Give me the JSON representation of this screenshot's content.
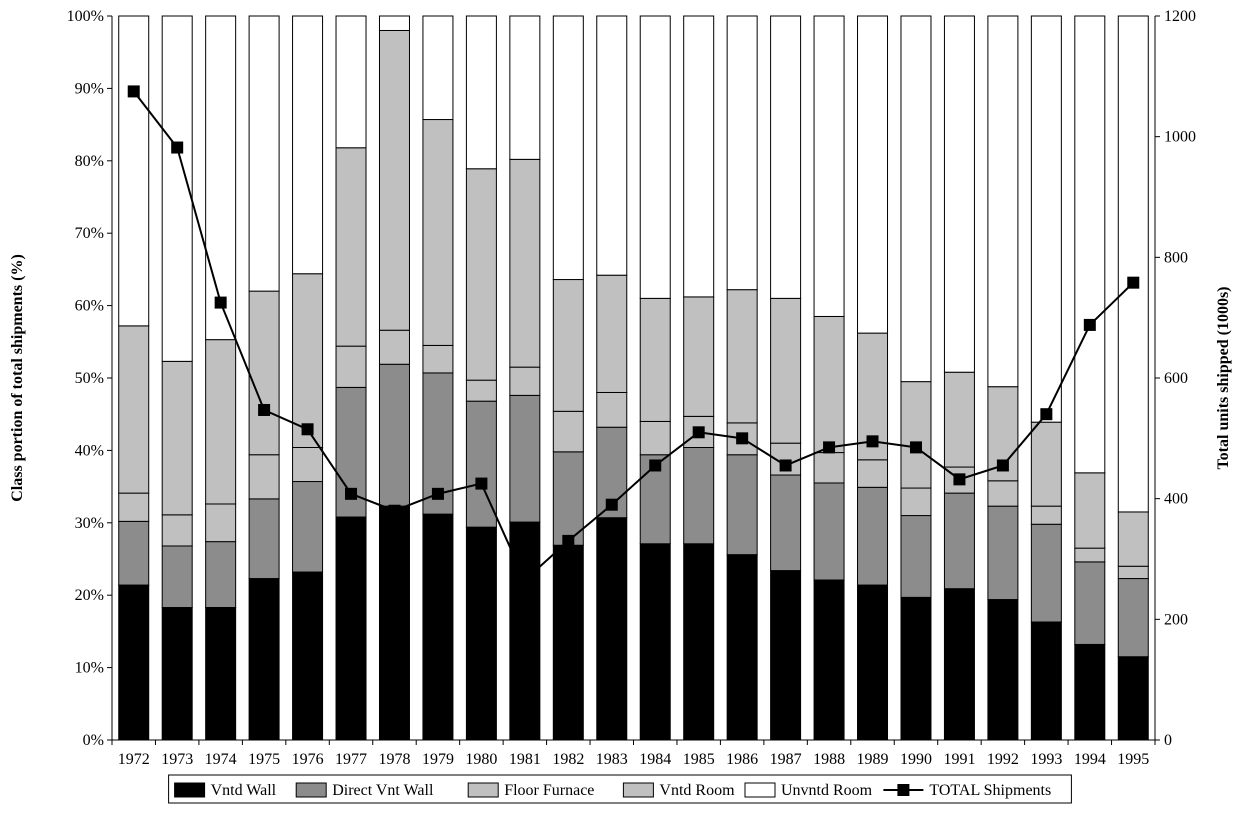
{
  "chart_data": {
    "type": "bar",
    "stacked": true,
    "categories": [
      "1972",
      "1973",
      "1974",
      "1975",
      "1976",
      "1977",
      "1978",
      "1979",
      "1980",
      "1981",
      "1982",
      "1983",
      "1984",
      "1985",
      "1986",
      "1987",
      "1988",
      "1989",
      "1990",
      "1991",
      "1992",
      "1993",
      "1994",
      "1995"
    ],
    "ylabel_left": "Class portion of total shipments (%)",
    "ylabel_right": "Total units shipped (1000s)",
    "y_left_ticks": [
      "0%",
      "10%",
      "20%",
      "30%",
      "40%",
      "50%",
      "60%",
      "70%",
      "80%",
      "90%",
      "100%"
    ],
    "y_right_ticks": [
      "0",
      "200",
      "400",
      "600",
      "800",
      "1000",
      "1200"
    ],
    "ylim_left": [
      0,
      100
    ],
    "ylim_right": [
      0,
      1200
    ],
    "grid": false,
    "legend_position": "bottom",
    "series": [
      {
        "name": "Vntd Wall",
        "color": "#000000",
        "values": [
          21.4,
          18.3,
          18.3,
          22.3,
          23.2,
          30.8,
          32.3,
          31.2,
          29.4,
          30.1,
          26.9,
          30.7,
          27.1,
          27.1,
          25.6,
          23.4,
          22.1,
          21.4,
          19.7,
          20.9,
          19.4,
          16.3,
          13.2,
          11.5
        ]
      },
      {
        "name": "Direct Vnt Wall",
        "color": "#8c8c8c",
        "values": [
          8.8,
          8.5,
          9.1,
          11.0,
          12.5,
          17.9,
          19.6,
          19.5,
          17.4,
          17.5,
          12.9,
          12.5,
          12.3,
          13.3,
          13.8,
          13.2,
          13.4,
          13.5,
          11.3,
          13.2,
          12.9,
          13.5,
          11.4,
          10.8
        ]
      },
      {
        "name": "Floor Furnace",
        "color": "#c0c0c0",
        "values": [
          3.9,
          4.3,
          5.2,
          6.1,
          4.7,
          5.7,
          4.7,
          3.8,
          2.9,
          3.9,
          5.6,
          4.8,
          4.6,
          4.3,
          4.4,
          4.4,
          4.2,
          3.8,
          3.8,
          3.6,
          3.5,
          2.5,
          1.9,
          1.7
        ]
      },
      {
        "name": "Vntd Room",
        "color": "#c0c0c0",
        "values": [
          23.1,
          21.2,
          22.7,
          22.6,
          24.0,
          27.4,
          41.4,
          31.2,
          29.2,
          28.7,
          18.2,
          16.2,
          17.0,
          16.5,
          18.4,
          20.0,
          18.8,
          17.5,
          14.7,
          13.1,
          13.0,
          11.6,
          10.4,
          7.5
        ]
      },
      {
        "name": "Unvntd Room",
        "color": "#ffffff",
        "values": [
          42.8,
          47.7,
          44.7,
          38.0,
          35.6,
          18.2,
          2.0,
          14.3,
          21.1,
          19.8,
          36.4,
          35.8,
          39.0,
          38.8,
          37.8,
          39.0,
          41.5,
          43.8,
          50.5,
          49.2,
          51.2,
          56.1,
          63.1,
          68.5
        ]
      }
    ],
    "line_series": {
      "name": "TOTAL Shipments",
      "axis": "right",
      "values": [
        1075,
        982,
        725,
        547,
        515,
        408,
        380,
        408,
        425,
        265,
        330,
        390,
        455,
        510,
        500,
        455,
        485,
        495,
        485,
        432,
        455,
        540,
        688,
        758
      ]
    }
  }
}
